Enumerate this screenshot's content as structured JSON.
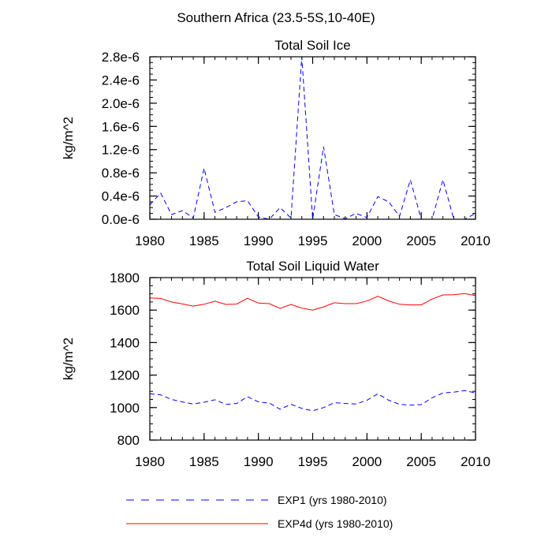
{
  "figure_title": "Southern Africa (23.5-5S,10-40E)",
  "colors": {
    "exp1": "#0000ff",
    "exp4d": "#ff0000"
  },
  "legend": {
    "placement": "bottom",
    "entries": [
      {
        "label": "EXP1 (yrs 1980-2010)",
        "style": "dashed",
        "color": "#0000ff"
      },
      {
        "label": "EXP4d (yrs 1980-2010)",
        "style": "solid",
        "color": "#ff0000"
      }
    ]
  },
  "chart_data": [
    {
      "type": "line",
      "title": "Total Soil Ice",
      "xlabel": "",
      "ylabel": "kg/m^2",
      "xlim": [
        1980,
        2010
      ],
      "ylim": [
        0,
        2.8e-06
      ],
      "x_ticks": [
        1980,
        1985,
        1990,
        1995,
        2000,
        2005,
        2010
      ],
      "y_ticks": [
        0,
        4e-07,
        8e-07,
        1.2e-06,
        1.6e-06,
        2e-06,
        2.4e-06,
        2.8e-06
      ],
      "y_tick_labels": [
        "0.0e-6",
        "0.4e-6",
        "0.8e-6",
        "1.2e-6",
        "1.6e-6",
        "2.0e-6",
        "2.4e-6",
        "2.8e-6"
      ],
      "x": [
        1980,
        1981,
        1982,
        1983,
        1984,
        1985,
        1986,
        1987,
        1988,
        1989,
        1990,
        1991,
        1992,
        1993,
        1994,
        1995,
        1996,
        1997,
        1998,
        1999,
        2000,
        2001,
        2002,
        2003,
        2004,
        2005,
        2006,
        2007,
        2008,
        2009,
        2010
      ],
      "series": [
        {
          "name": "EXP1 (yrs 1980-2010)",
          "style": "dashed",
          "values": [
            2.5e-07,
            4.5e-07,
            8e-08,
            1.5e-07,
            2e-08,
            8.8e-07,
            1.2e-07,
            2e-07,
            3e-07,
            3.2e-07,
            4e-08,
            0,
            2e-07,
            2e-08,
            2.8e-06,
            0,
            1.25e-06,
            8e-08,
            1e-08,
            1e-07,
            3e-08,
            3.9e-07,
            3e-07,
            5e-08,
            6.8e-07,
            0,
            0,
            6.8e-07,
            0,
            0,
            1e-07
          ]
        },
        {
          "name": "EXP4d (yrs 1980-2010)",
          "style": "solid",
          "values": [
            0,
            0,
            0,
            0,
            0,
            0,
            0,
            0,
            0,
            0,
            0,
            0,
            0,
            0,
            0,
            0,
            0,
            0,
            0,
            0,
            0,
            0,
            0,
            0,
            0,
            0,
            0,
            0,
            0,
            0,
            0
          ]
        }
      ]
    },
    {
      "type": "line",
      "title": "Total Soil Liquid Water",
      "xlabel": "",
      "ylabel": "kg/m^2",
      "xlim": [
        1980,
        2010
      ],
      "ylim": [
        800,
        1800
      ],
      "x_ticks": [
        1980,
        1985,
        1990,
        1995,
        2000,
        2005,
        2010
      ],
      "y_ticks": [
        800,
        1000,
        1200,
        1400,
        1600,
        1800
      ],
      "y_tick_labels": [
        "800",
        "1000",
        "1200",
        "1400",
        "1600",
        "1800"
      ],
      "x": [
        1980,
        1981,
        1982,
        1983,
        1984,
        1985,
        1986,
        1987,
        1988,
        1989,
        1990,
        1991,
        1992,
        1993,
        1994,
        1995,
        1996,
        1997,
        1998,
        1999,
        2000,
        2001,
        2002,
        2003,
        2004,
        2005,
        2006,
        2007,
        2008,
        2009,
        2010
      ],
      "series": [
        {
          "name": "EXP1 (yrs 1980-2010)",
          "style": "dashed",
          "values": [
            1085,
            1078,
            1050,
            1035,
            1022,
            1033,
            1048,
            1020,
            1025,
            1067,
            1035,
            1028,
            990,
            1020,
            995,
            980,
            1000,
            1030,
            1025,
            1022,
            1045,
            1085,
            1045,
            1020,
            1015,
            1018,
            1060,
            1090,
            1095,
            1105,
            1090
          ]
        },
        {
          "name": "EXP4d (yrs 1980-2010)",
          "style": "solid",
          "values": [
            1675,
            1672,
            1650,
            1638,
            1625,
            1636,
            1655,
            1635,
            1637,
            1673,
            1643,
            1640,
            1610,
            1635,
            1612,
            1600,
            1620,
            1645,
            1640,
            1640,
            1656,
            1685,
            1657,
            1636,
            1632,
            1632,
            1668,
            1693,
            1694,
            1702,
            1690
          ]
        }
      ]
    }
  ]
}
